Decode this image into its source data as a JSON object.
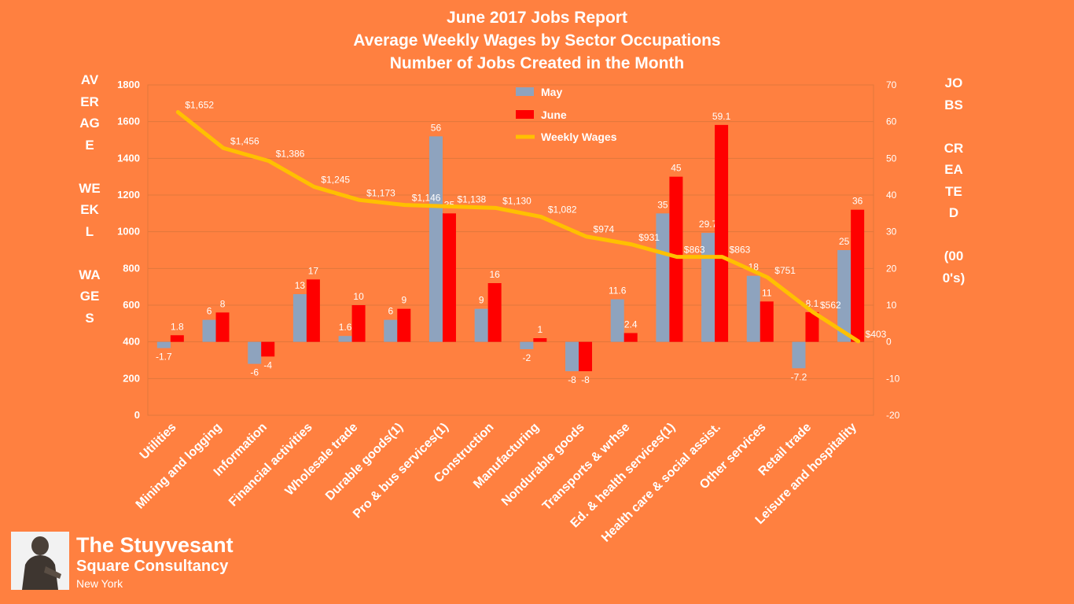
{
  "colors": {
    "background": "#FF8040",
    "may": "#8EA3BE",
    "june": "#FF0000",
    "wages": "#FFC000",
    "text": "#FFFFFF",
    "grid": "#E0773C"
  },
  "header": {
    "line1": "June 2017 Jobs Report",
    "line2": "Average Weekly Wages by Sector Occupations",
    "line3": "Number of Jobs Created in the Month"
  },
  "axis_titles": {
    "left": "AVERAGE\n\nWEEKL\n\nWAGES",
    "right": "JOBS\n\nCREATED\n\n(000's)"
  },
  "firm": {
    "name": "The Stuyvesant",
    "sub": "Square  Consultancy",
    "city": "New York"
  },
  "chart_data": {
    "type": "bar",
    "title": "June 2017 Jobs Report\nAverage Weekly Wages by Sector Occupations\nNumber of Jobs Created in the Month",
    "categories": [
      "Utilities",
      "Mining and logging",
      "Information",
      "Financial activities",
      "Wholesale trade",
      "Durable goods(1)",
      "Pro & bus services(1)",
      "Construction",
      "Manufacturing",
      "Nondurable goods",
      "Transports & wrhse",
      "Ed. & health services(1)",
      "Health care & social assist.",
      "Other services",
      "Retail trade",
      "Leisure and hospitality"
    ],
    "series": [
      {
        "name": "May",
        "type": "bar",
        "axis": "right",
        "values": [
          -1.7,
          6,
          -6,
          13,
          1.6,
          6,
          56,
          9,
          -2,
          -8,
          11.6,
          35,
          29.7,
          18,
          -7.2,
          25
        ],
        "labels": [
          "-1.7",
          "6",
          "-6",
          "13",
          "1.6",
          "6",
          "56",
          "9",
          "-2",
          "-8",
          "11.6",
          "35",
          "29.7",
          "18",
          "-7.2",
          "25"
        ]
      },
      {
        "name": "June",
        "type": "bar",
        "axis": "right",
        "values": [
          1.8,
          8,
          -4,
          17,
          10,
          9,
          35,
          16,
          1,
          -8,
          2.4,
          45,
          59.1,
          11,
          8.1,
          36
        ],
        "labels": [
          "1.8",
          "8",
          "-4",
          "17",
          "10",
          "9",
          "35",
          "16",
          "1",
          "-8",
          "2.4",
          "45",
          "59.1",
          "11",
          "8.1",
          "36"
        ]
      },
      {
        "name": "Weekly Wages",
        "type": "line",
        "axis": "left",
        "values": [
          1652,
          1456,
          1386,
          1245,
          1173,
          1146,
          1138,
          1130,
          1082,
          974,
          931,
          863,
          863,
          751,
          562,
          403
        ],
        "labels": [
          "$1,652",
          "$1,456",
          "$1,386",
          "$1,245",
          "$1,173",
          "$1,146",
          "$1,138",
          "$1,130",
          "$1,082",
          "$974",
          "$931",
          "$863",
          "$863",
          "$751",
          "$562",
          "$403"
        ]
      }
    ],
    "left_axis": {
      "min": 0,
      "max": 1800,
      "ticks": [
        "0",
        "200",
        "400",
        "600",
        "800",
        "1000",
        "1200",
        "1400",
        "1600",
        "1800"
      ]
    },
    "right_axis": {
      "min": -20,
      "max": 70,
      "ticks": [
        "-20",
        "-10",
        "0",
        "10",
        "20",
        "30",
        "40",
        "50",
        "60",
        "70"
      ]
    },
    "grid": true,
    "legend_position": "top-center"
  }
}
